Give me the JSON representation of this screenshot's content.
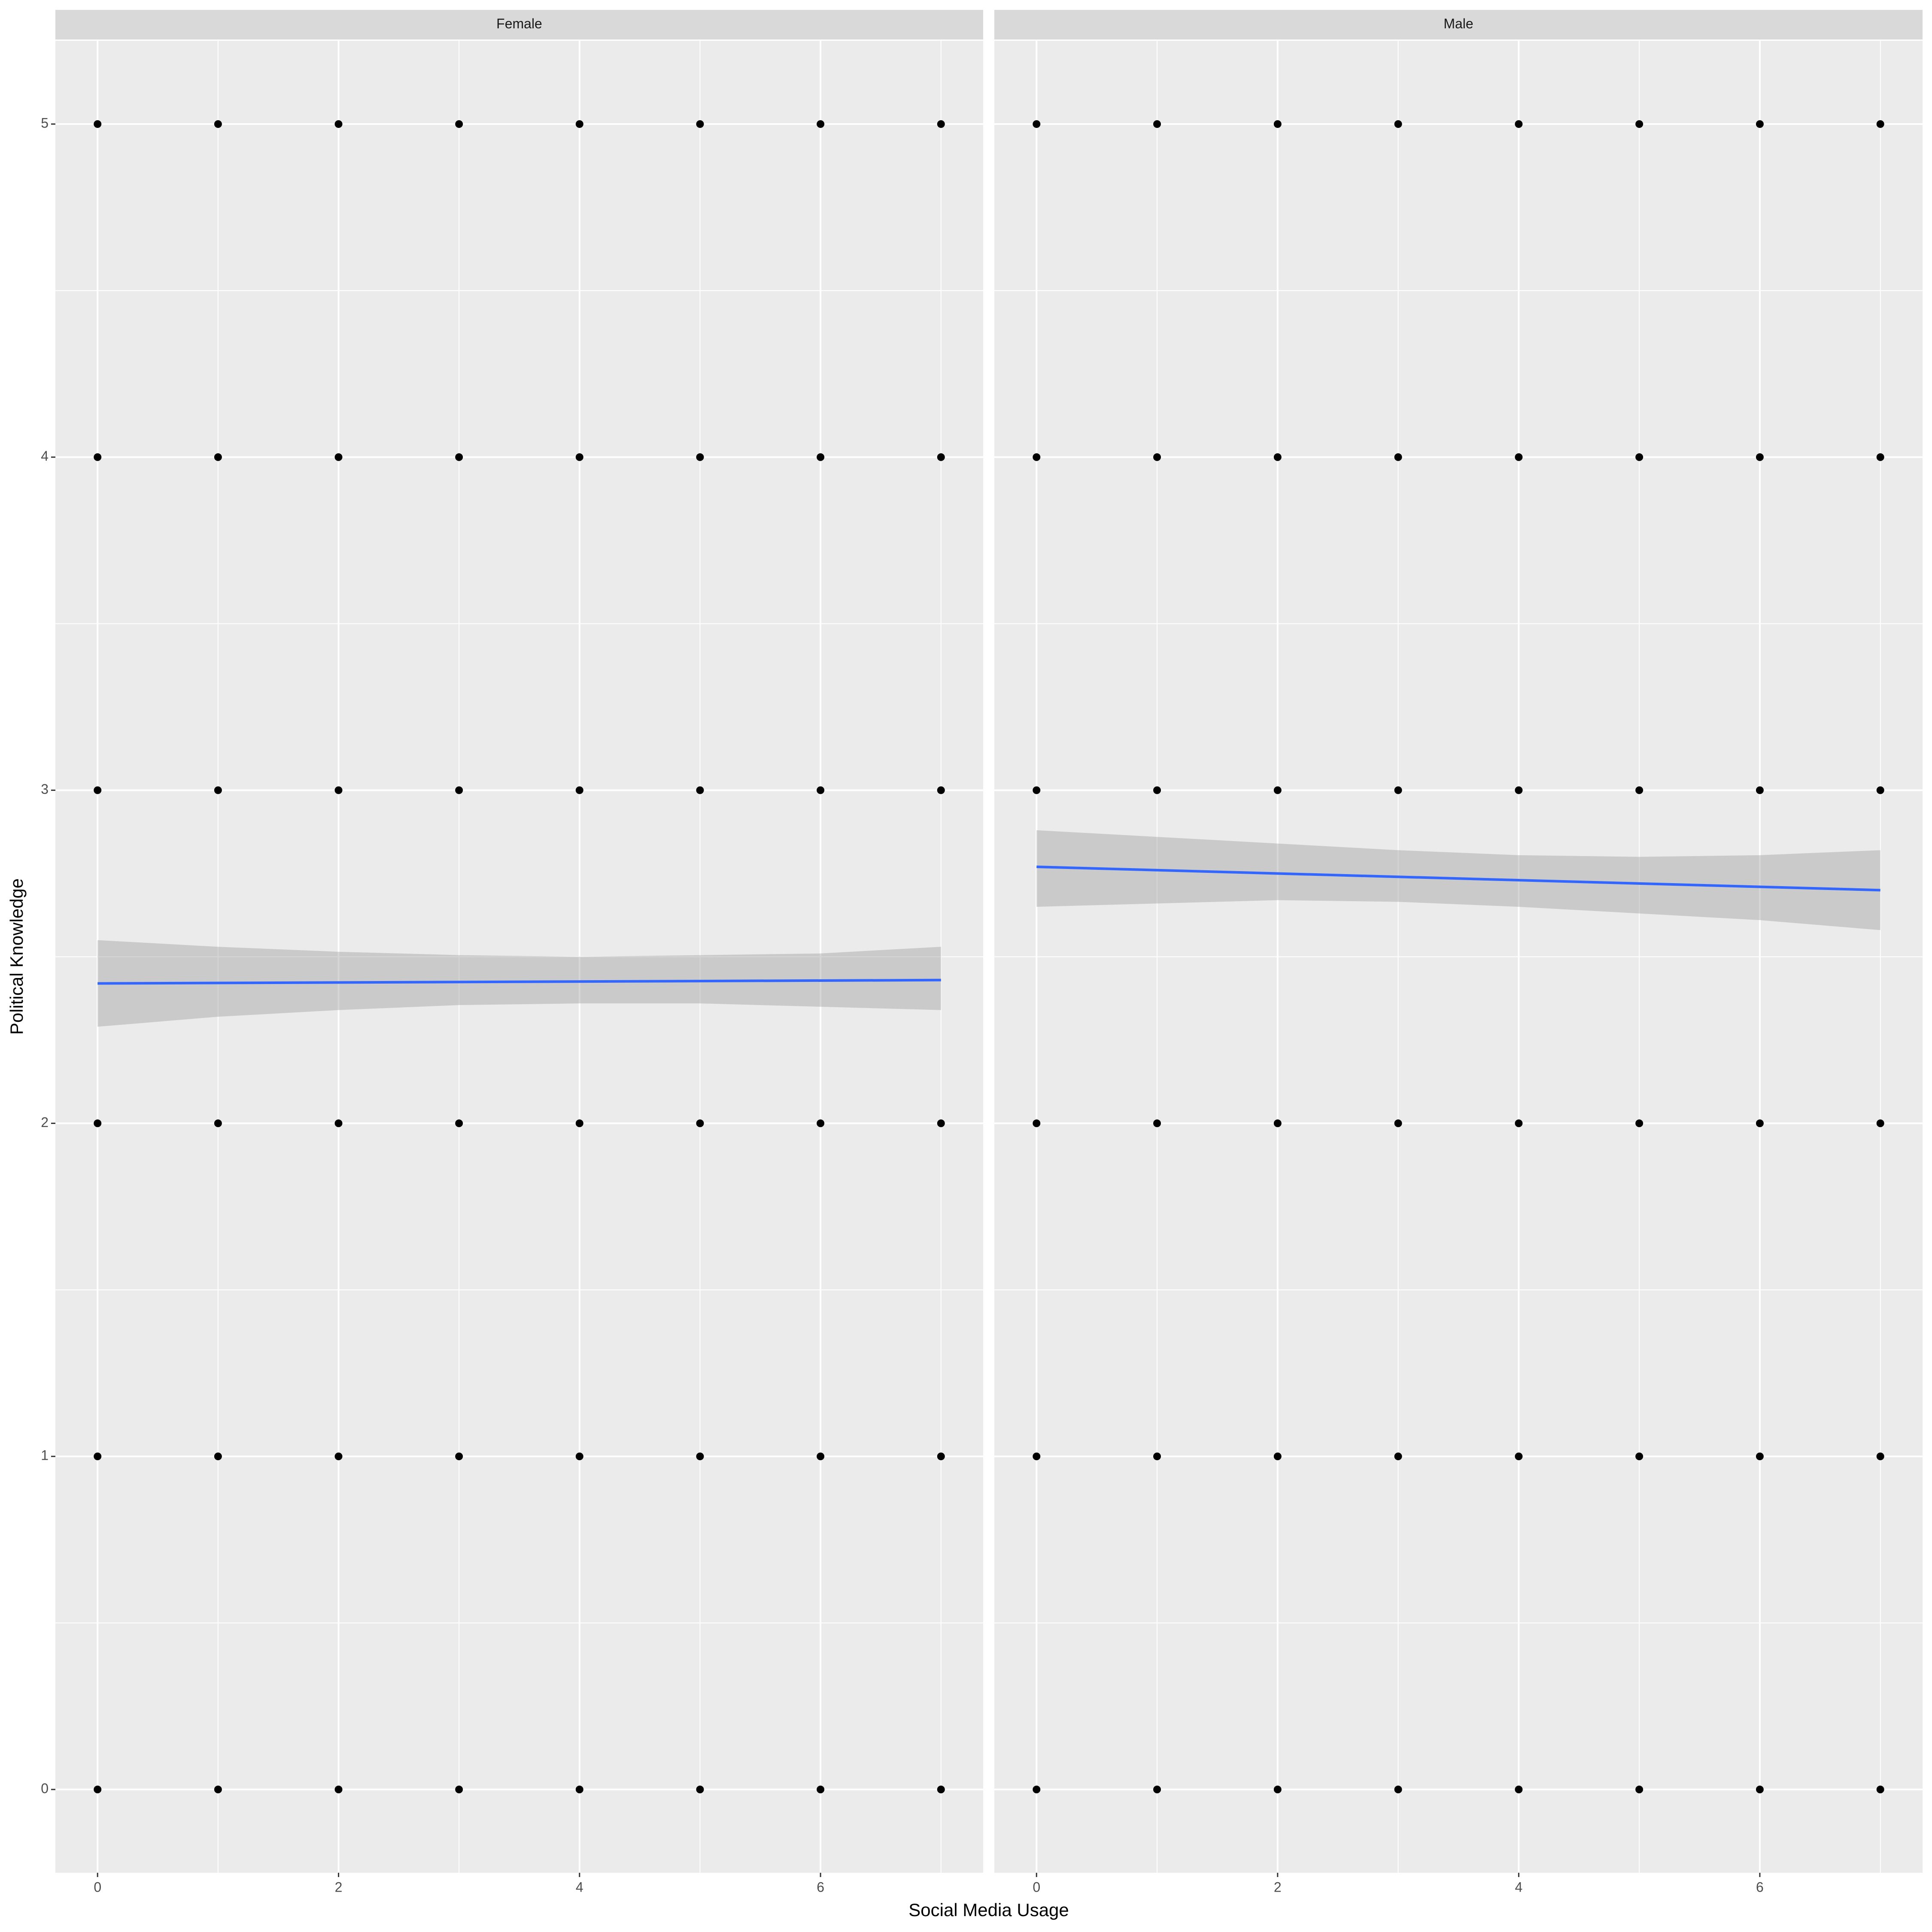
{
  "xlabel": "Social Media Usage",
  "ylabel": "Political Knowledge",
  "chart_data": [
    {
      "type": "scatter",
      "title": "Female",
      "x": [
        0,
        1,
        2,
        3,
        4,
        5,
        6,
        7,
        0,
        1,
        2,
        3,
        4,
        5,
        6,
        7,
        0,
        1,
        2,
        3,
        4,
        5,
        6,
        7,
        0,
        1,
        2,
        3,
        4,
        5,
        6,
        7,
        0,
        1,
        2,
        3,
        4,
        5,
        6,
        7,
        0,
        1,
        2,
        3,
        4,
        5,
        6,
        7
      ],
      "y": [
        0,
        0,
        0,
        0,
        0,
        0,
        0,
        0,
        1,
        1,
        1,
        1,
        1,
        1,
        1,
        1,
        2,
        2,
        2,
        2,
        2,
        2,
        2,
        2,
        3,
        3,
        3,
        3,
        3,
        3,
        3,
        3,
        4,
        4,
        4,
        4,
        4,
        4,
        4,
        4,
        5,
        5,
        5,
        5,
        5,
        5,
        5,
        5
      ],
      "color": "#000000",
      "fit": {
        "x": [
          0,
          7
        ],
        "y": [
          2.42,
          2.43
        ],
        "color": "#3366ff"
      },
      "band": {
        "x": [
          0,
          1,
          2,
          3,
          4,
          5,
          6,
          7
        ],
        "lower": [
          2.29,
          2.32,
          2.34,
          2.355,
          2.36,
          2.36,
          2.35,
          2.34
        ],
        "upper": [
          2.55,
          2.53,
          2.515,
          2.505,
          2.5,
          2.505,
          2.51,
          2.53
        ],
        "color": "#999999"
      },
      "xlim": [
        -0.35,
        7.35
      ],
      "ylim": [
        -0.25,
        5.25
      ],
      "xticks": [
        0,
        2,
        4,
        6
      ],
      "yticks": [
        0,
        1,
        2,
        3,
        4,
        5
      ],
      "grid": true
    },
    {
      "type": "scatter",
      "title": "Male",
      "x": [
        0,
        1,
        2,
        3,
        4,
        5,
        6,
        7,
        0,
        1,
        2,
        3,
        4,
        5,
        6,
        7,
        0,
        1,
        2,
        3,
        4,
        5,
        6,
        7,
        0,
        1,
        2,
        3,
        4,
        5,
        6,
        7,
        0,
        1,
        2,
        3,
        4,
        5,
        6,
        7,
        0,
        1,
        2,
        3,
        4,
        5,
        6,
        7
      ],
      "y": [
        0,
        0,
        0,
        0,
        0,
        0,
        0,
        0,
        1,
        1,
        1,
        1,
        1,
        1,
        1,
        1,
        2,
        2,
        2,
        2,
        2,
        2,
        2,
        2,
        3,
        3,
        3,
        3,
        3,
        3,
        3,
        3,
        4,
        4,
        4,
        4,
        4,
        4,
        4,
        4,
        5,
        5,
        5,
        5,
        5,
        5,
        5,
        5
      ],
      "color": "#000000",
      "fit": {
        "x": [
          0,
          7
        ],
        "y": [
          2.77,
          2.7
        ],
        "color": "#3366ff"
      },
      "band": {
        "x": [
          0,
          1,
          2,
          3,
          4,
          5,
          6,
          7
        ],
        "lower": [
          2.65,
          2.66,
          2.67,
          2.665,
          2.65,
          2.63,
          2.61,
          2.58
        ],
        "upper": [
          2.88,
          2.86,
          2.84,
          2.82,
          2.805,
          2.8,
          2.805,
          2.82
        ],
        "color": "#999999"
      },
      "xlim": [
        -0.35,
        7.35
      ],
      "ylim": [
        -0.25,
        5.25
      ],
      "xticks": [
        0,
        2,
        4,
        6
      ],
      "yticks": [
        0,
        1,
        2,
        3,
        4,
        5
      ],
      "grid": true
    }
  ]
}
